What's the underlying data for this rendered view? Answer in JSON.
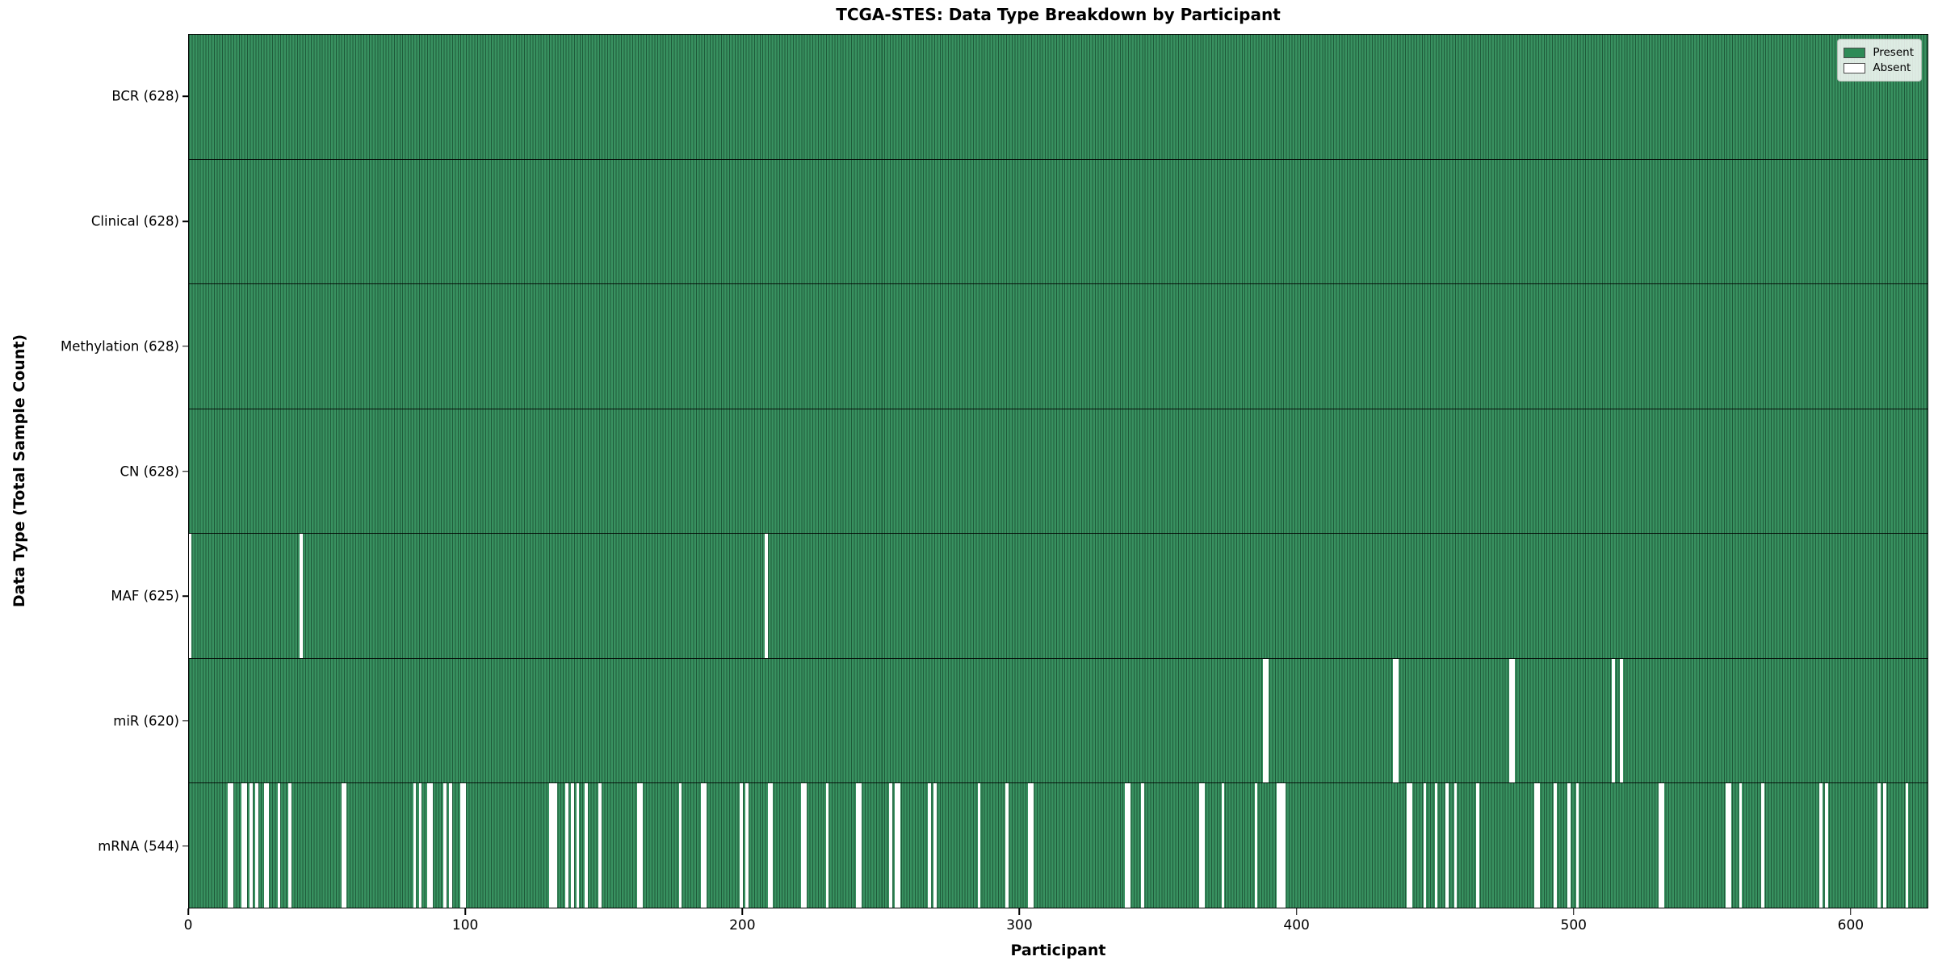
{
  "chart_data": {
    "type": "heatmap",
    "title": "TCGA-STES: Data Type Breakdown by Participant",
    "xlabel": "Participant",
    "ylabel": "Data Type (Total Sample Count)",
    "n_participants": 628,
    "xlim": [
      0,
      628
    ],
    "x_ticks": [
      0,
      100,
      200,
      300,
      400,
      500,
      600
    ],
    "grid": false,
    "legend_position": "upper right",
    "colors": {
      "present": "#2e8b57",
      "present_edge": "#1f5a3a",
      "absent": "#ffffff",
      "row_divider": "#000000",
      "plot_border": "#000000"
    },
    "legend_items": [
      {
        "label": "Present",
        "color": "#2e8b57"
      },
      {
        "label": "Absent",
        "color": "#ffffff"
      }
    ],
    "rows": [
      {
        "label": "BCR",
        "count": 628,
        "display": "BCR (628)",
        "absent": []
      },
      {
        "label": "Clinical",
        "count": 628,
        "display": "Clinical (628)",
        "absent": []
      },
      {
        "label": "Methylation",
        "count": 628,
        "display": "Methylation (628)",
        "absent": []
      },
      {
        "label": "CN",
        "count": 628,
        "display": "CN (628)",
        "absent": []
      },
      {
        "label": "MAF",
        "count": 625,
        "display": "MAF (625)",
        "absent": [
          0,
          40,
          208
        ]
      },
      {
        "label": "miR",
        "count": 620,
        "display": "miR (620)",
        "absent": [
          388,
          389,
          435,
          436,
          477,
          478,
          514,
          517
        ]
      },
      {
        "label": "mRNA",
        "count": 544,
        "display": "mRNA (544)",
        "absent": [
          14,
          15,
          19,
          20,
          22,
          24,
          27,
          28,
          32,
          36,
          55,
          56,
          81,
          83,
          86,
          87,
          92,
          94,
          98,
          99,
          130,
          131,
          132,
          136,
          138,
          140,
          143,
          148,
          162,
          163,
          177,
          185,
          186,
          199,
          201,
          209,
          210,
          221,
          222,
          230,
          241,
          242,
          253,
          255,
          256,
          267,
          269,
          285,
          295,
          303,
          304,
          338,
          339,
          344,
          365,
          366,
          373,
          385,
          393,
          394,
          395,
          440,
          441,
          446,
          450,
          454,
          457,
          465,
          486,
          487,
          493,
          498,
          501,
          531,
          532,
          555,
          556,
          560,
          568,
          589,
          591,
          610,
          612,
          620
        ]
      }
    ]
  }
}
